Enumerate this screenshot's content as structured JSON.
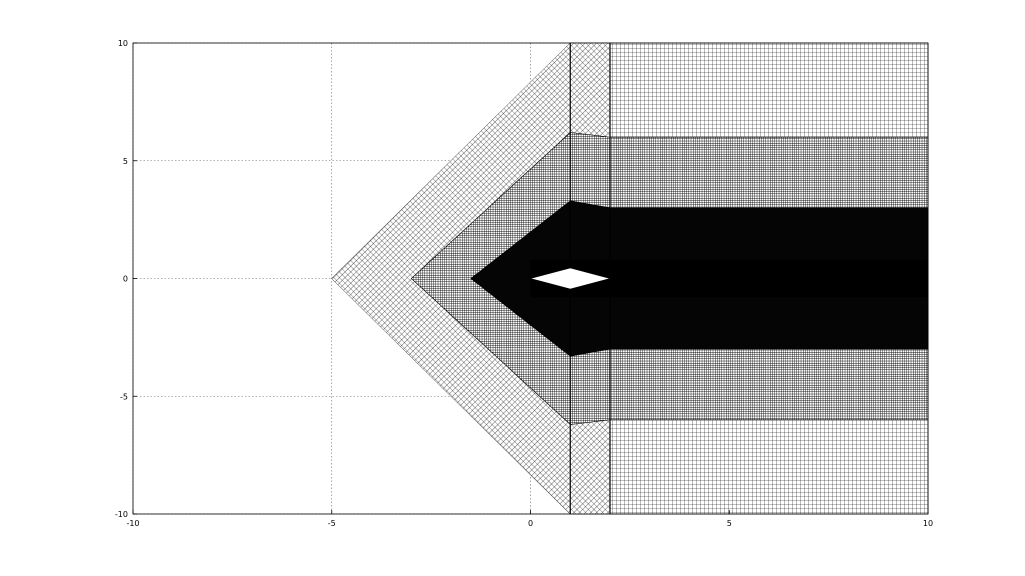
{
  "chart_data": {
    "type": "other",
    "description_type": "structured mesh plot",
    "xlim": [
      -10,
      10
    ],
    "ylim": [
      -10,
      10
    ],
    "grid": true,
    "grid_style": "dotted",
    "xticks": [
      -10,
      -5,
      0,
      5,
      10
    ],
    "yticks": [
      -10,
      -5,
      0,
      5,
      10
    ],
    "xtick_labels": [
      "-10",
      "-5",
      "0",
      "5",
      "10"
    ],
    "ytick_labels": [
      "-10",
      "-5",
      "0",
      "5",
      "10"
    ],
    "mesh_color": "#000000",
    "outer_boundary": [
      [
        -5,
        0
      ],
      [
        1,
        10
      ],
      [
        10,
        10
      ],
      [
        10,
        -10
      ],
      [
        1,
        -10
      ]
    ],
    "layer_boundaries": [
      [
        [
          -3,
          0
        ],
        [
          1,
          6.2
        ],
        [
          2,
          6
        ],
        [
          10,
          6
        ],
        [
          10,
          -6
        ],
        [
          2,
          -6
        ],
        [
          1,
          -6.2
        ]
      ],
      [
        [
          -1.5,
          0
        ],
        [
          1,
          3.3
        ],
        [
          2,
          3
        ],
        [
          10,
          3
        ],
        [
          10,
          -3
        ],
        [
          2,
          -3
        ],
        [
          1,
          -3.3
        ]
      ]
    ],
    "core_band": [
      [
        0,
        0.8
      ],
      [
        10,
        0.8
      ],
      [
        10,
        -0.8
      ],
      [
        0,
        -0.8
      ]
    ],
    "airfoil_hole": [
      [
        0,
        0
      ],
      [
        1,
        0.45
      ],
      [
        2,
        0
      ],
      [
        1,
        -0.45
      ]
    ],
    "column_lines_x": [
      1,
      2
    ]
  }
}
